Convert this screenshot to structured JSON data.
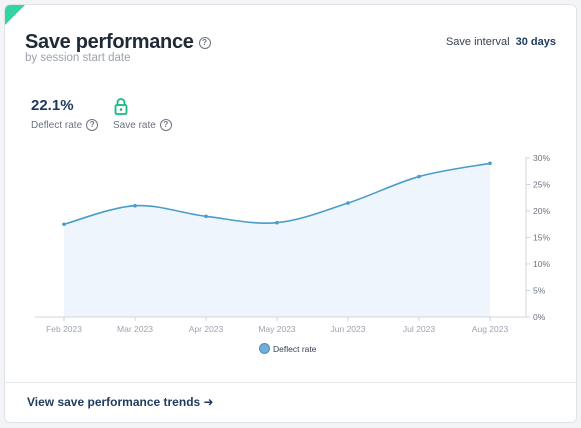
{
  "header": {
    "title": "Save performance",
    "subtitle": "by session start date",
    "interval_label": "Save interval",
    "interval_value": "30 days"
  },
  "metrics": [
    {
      "value": "22.1%",
      "label": "Deflect rate"
    },
    {
      "value": "",
      "label": "Save rate",
      "icon": "lock-icon"
    }
  ],
  "chart_data": {
    "type": "area",
    "x": [
      "Feb 2023",
      "Mar 2023",
      "Apr 2023",
      "May 2023",
      "Jun 2023",
      "Jul 2023",
      "Aug 2023"
    ],
    "series": [
      {
        "name": "Deflect rate",
        "values": [
          17.5,
          21.0,
          19.0,
          17.8,
          21.5,
          26.5,
          29.0
        ]
      }
    ],
    "y_ticks": [
      "0%",
      "5%",
      "10%",
      "15%",
      "20%",
      "25%",
      "30%"
    ],
    "ylim": [
      0,
      30
    ],
    "grid": false,
    "legend": "bottom",
    "colors": {
      "line": "#4a9cc9",
      "fill": "#eef5fc",
      "axis": "#d1d5db"
    }
  },
  "footer": {
    "link_label": "View save performance trends ➜"
  }
}
